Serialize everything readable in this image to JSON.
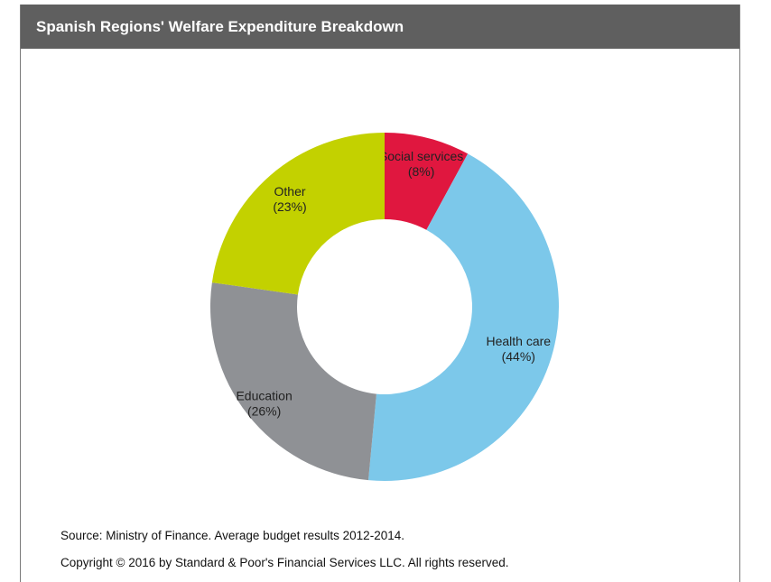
{
  "title": "Spanish Regions' Welfare Expenditure Breakdown",
  "chart_data": {
    "type": "pie",
    "variant": "donut",
    "title": "Spanish Regions' Welfare Expenditure Breakdown",
    "start_angle_deg": 0,
    "direction": "clockwise",
    "slices": [
      {
        "name": "Social services",
        "pct_label": "(8%)",
        "value": 8,
        "color": "#e0173f"
      },
      {
        "name": "Health care",
        "pct_label": "(44%)",
        "value": 44,
        "color": "#7cc8ea"
      },
      {
        "name": "Education",
        "pct_label": "(26%)",
        "value": 26,
        "color": "#8f9195"
      },
      {
        "name": "Other",
        "pct_label": "(23%)",
        "value": 23,
        "color": "#c3d100"
      }
    ]
  },
  "footer": {
    "source": "Source: Ministry of Finance. Average budget results 2012-2014.",
    "copyright": "Copyright © 2016 by Standard & Poor's Financial Services LLC. All rights reserved."
  }
}
